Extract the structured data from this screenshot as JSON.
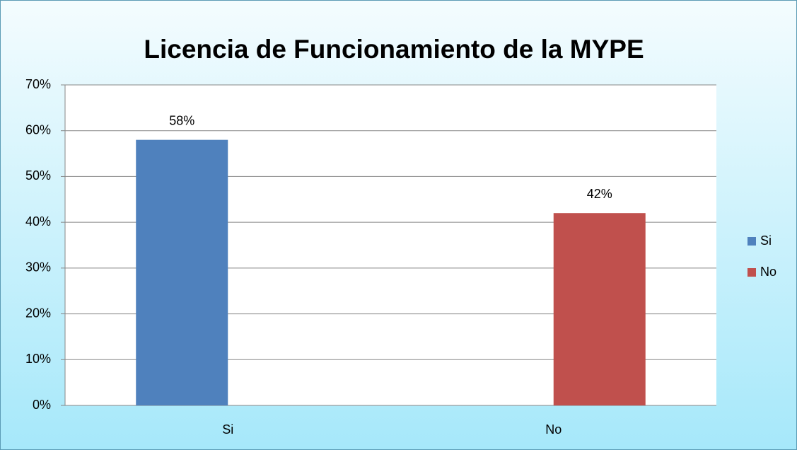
{
  "chart_data": {
    "type": "bar",
    "title": "Licencia de Funcionamiento de la  MYPE",
    "categories": [
      "Si",
      "No"
    ],
    "series": [
      {
        "name": "Si",
        "color": "#4f81bd",
        "values": [
          58,
          null
        ],
        "value_labels": [
          "58%",
          null
        ]
      },
      {
        "name": "No",
        "color": "#c0504d",
        "values": [
          null,
          42
        ],
        "value_labels": [
          null,
          "42%"
        ]
      }
    ],
    "ylim": [
      0,
      70
    ],
    "yticks": [
      {
        "value": 0,
        "label": "0%"
      },
      {
        "value": 10,
        "label": "10%"
      },
      {
        "value": 20,
        "label": "20%"
      },
      {
        "value": 30,
        "label": "30%"
      },
      {
        "value": 40,
        "label": "40%"
      },
      {
        "value": 50,
        "label": "50%"
      },
      {
        "value": 60,
        "label": "60%"
      },
      {
        "value": 70,
        "label": "70%"
      }
    ],
    "grid": true,
    "legend": "right"
  }
}
